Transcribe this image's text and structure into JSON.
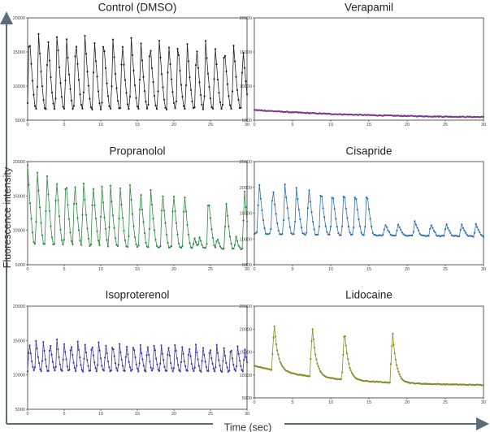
{
  "figure": {
    "y_axis_label": "Fluorescence intensity",
    "x_axis_label": "Time (sec)",
    "axis_arrow_color": "#5a6b7c"
  },
  "chart_data": [
    {
      "type": "line",
      "title": "Control (DMSO)",
      "color": "#222222",
      "xlim": [
        0,
        30
      ],
      "ylim": [
        5000,
        20000
      ],
      "x_ticks": [
        0,
        5,
        10,
        15,
        20,
        25,
        30
      ],
      "y_ticks": [
        5000,
        10000,
        15000,
        20000
      ],
      "pattern": {
        "kind": "oscillation",
        "beat_period_s": 1.27,
        "first_peak_s": 0.2,
        "rise_s": 0.25,
        "fall_s": 0.9,
        "peak_start": 18200,
        "peak_end": 16200,
        "base_start": 6600,
        "base_end": 6700,
        "samples_per_s": 6,
        "noise": 200
      }
    },
    {
      "type": "line",
      "title": "Verapamil",
      "color": "#7a3a8a",
      "xlim": [
        0,
        30
      ],
      "ylim": [
        5000,
        20000
      ],
      "x_ticks": [
        0,
        5,
        10,
        15,
        20,
        25,
        30
      ],
      "y_ticks": [
        5000,
        10000,
        15000,
        20000
      ],
      "pattern": {
        "kind": "decay",
        "start": 6500,
        "end": 5300,
        "tau_s": 15,
        "samples_per_s": 8,
        "noise": 120
      }
    },
    {
      "type": "line",
      "title": "Propranolol",
      "color": "#2e8b3e",
      "xlim": [
        0,
        30
      ],
      "ylim": [
        5000,
        20000
      ],
      "x_ticks": [
        0,
        5,
        10,
        15,
        20,
        25,
        30
      ],
      "y_ticks": [
        5000,
        10000,
        15000,
        20000
      ],
      "pattern": {
        "kind": "beats",
        "beat_times_s": [
          0.0,
          1.3,
          2.6,
          3.9,
          5.2,
          6.4,
          7.6,
          8.9,
          10.1,
          11.3,
          12.6,
          14.0,
          15.4,
          16.8,
          18.4,
          19.9,
          21.4,
          24.7,
          27.1,
          29.6
        ],
        "peak_values": [
          19500,
          19000,
          18900,
          18400,
          18200,
          17800,
          17800,
          17500,
          17300,
          17000,
          17000,
          16600,
          16500,
          16300,
          16200,
          16200,
          16000,
          15200,
          14500,
          16500
        ],
        "rise_s": 0.25,
        "fall_s": 0.9,
        "base_start": 8000,
        "base_end": 7300,
        "samples_per_s": 6,
        "noise": 180,
        "minor_wobbles_s": [
          22.8,
          23.5,
          25.9,
          28.5
        ],
        "minor_wobble_value": 9000
      }
    },
    {
      "type": "line",
      "title": "Cisapride",
      "color": "#2f6fb0",
      "xlim": [
        0,
        30
      ],
      "ylim": [
        5000,
        25000
      ],
      "x_ticks": [
        0,
        5,
        10,
        15,
        20,
        25,
        30
      ],
      "y_ticks": [
        5000,
        10000,
        15000,
        20000,
        25000
      ],
      "pattern": {
        "kind": "beats",
        "beat_times_s": [
          0.6,
          2.4,
          4.0,
          5.5,
          7.1,
          8.7,
          10.2,
          11.7,
          13.2,
          14.7,
          17.1,
          18.8,
          21.0,
          23.1,
          25.1,
          27.1,
          29.0
        ],
        "peak_values": [
          21500,
          20500,
          20500,
          20000,
          20500,
          20000,
          19500,
          19800,
          19500,
          19500,
          13000,
          13000,
          13500,
          13000,
          13000,
          13000,
          13000
        ],
        "rise_s": 0.3,
        "fall_s": 0.9,
        "base_start": 11000,
        "base_end": 10500,
        "samples_per_s": 6,
        "noise": 220
      }
    },
    {
      "type": "line",
      "title": "Isoproterenol",
      "color": "#3a3aa8",
      "xlim": [
        0,
        30
      ],
      "ylim": [
        5000,
        20000
      ],
      "x_ticks": [
        0,
        5,
        10,
        15,
        20,
        25,
        30
      ],
      "y_ticks": [
        5000,
        10000,
        15000,
        20000
      ],
      "pattern": {
        "kind": "oscillation",
        "beat_period_s": 0.95,
        "first_peak_s": 0.2,
        "rise_s": 0.2,
        "fall_s": 0.65,
        "peak_start": 15200,
        "peak_end": 14200,
        "base_start": 10600,
        "base_end": 10500,
        "samples_per_s": 7,
        "noise": 200
      }
    },
    {
      "type": "line",
      "title": "Lidocaine",
      "color": "#8a8a2a",
      "xlim": [
        0,
        30
      ],
      "ylim": [
        5000,
        25000
      ],
      "x_ticks": [
        0,
        5,
        10,
        15,
        20,
        25,
        30
      ],
      "y_ticks": [
        5000,
        10000,
        15000,
        20000,
        25000
      ],
      "pattern": {
        "kind": "spikes",
        "spike_times_s": [
          2.6,
          7.6,
          11.8,
          18.1
        ],
        "peak_values": [
          21000,
          20500,
          20000,
          19500
        ],
        "rise_s": 0.35,
        "decay_tau_s": 0.5,
        "base_start": 12000,
        "base_end": 7600,
        "base_tau_s": 10,
        "samples_per_s": 8,
        "noise": 170
      }
    }
  ]
}
